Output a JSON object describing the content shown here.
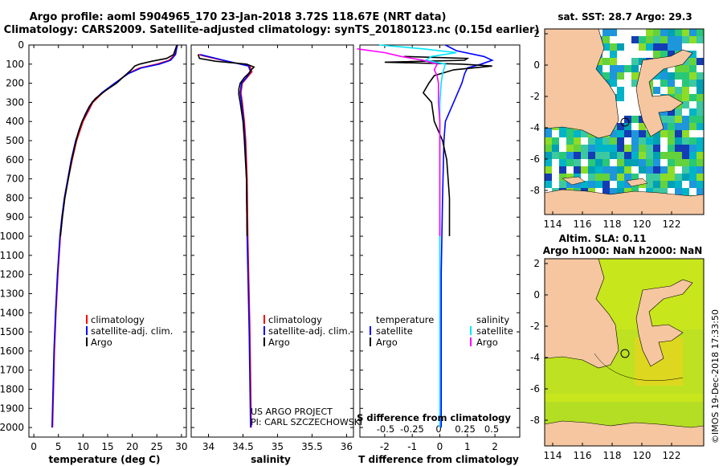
{
  "title_line1": "Argo profile: aoml 5904965_170 23-Jan-2018 3.72S 118.67E (NRT data)",
  "title_line2": "Climatology: CARS2009. Satellite-adjusted climatology: synTS_20180123.nc (0.15d earlier)",
  "depth_ticks": [
    0,
    100,
    200,
    300,
    400,
    500,
    600,
    700,
    800,
    900,
    1000,
    1100,
    1200,
    1300,
    1400,
    1500,
    1600,
    1700,
    1800,
    1900,
    2000
  ],
  "colors": {
    "climatology": "#ff0000",
    "satellite": "#0000ff",
    "argo": "#000000",
    "cyan": "#00e5ff",
    "magenta": "#ff00ff",
    "land": "#f5c6a0"
  },
  "chart_data": [
    {
      "type": "line",
      "id": "temperature",
      "xlabel": "temperature (deg C)",
      "xlim": [
        -1,
        31
      ],
      "ylim": [
        2050,
        0
      ],
      "xticks": [
        0,
        5,
        10,
        15,
        20,
        25,
        30
      ],
      "legend": [
        "climatology",
        "satellite-adj. clim.",
        "Argo"
      ],
      "series": [
        {
          "name": "climatology",
          "color": "#ff0000",
          "depth": [
            0,
            20,
            50,
            80,
            100,
            120,
            150,
            200,
            250,
            300,
            400,
            500,
            600,
            700,
            800,
            900,
            1000,
            1200,
            1400,
            1600,
            1800,
            2000
          ],
          "values": [
            29.0,
            28.9,
            28.7,
            27.5,
            25.0,
            21.5,
            19.0,
            16.5,
            14.0,
            12.0,
            10.0,
            8.7,
            7.8,
            7.0,
            6.3,
            5.8,
            5.4,
            4.9,
            4.5,
            4.2,
            4.0,
            3.8
          ]
        },
        {
          "name": "satellite-adj. clim.",
          "color": "#0000ff",
          "depth": [
            0,
            20,
            50,
            80,
            100,
            120,
            150,
            200,
            250,
            300,
            400,
            500,
            600,
            700,
            800,
            900,
            1000,
            1200,
            1400,
            1600,
            1800,
            2000
          ],
          "values": [
            29.2,
            29.0,
            28.8,
            27.8,
            25.5,
            21.8,
            19.2,
            16.4,
            13.8,
            11.8,
            9.8,
            8.5,
            7.6,
            6.9,
            6.2,
            5.7,
            5.3,
            4.8,
            4.4,
            4.1,
            3.9,
            3.7
          ]
        },
        {
          "name": "Argo",
          "color": "#000000",
          "depth": [
            0,
            20,
            50,
            70,
            85,
            100,
            110,
            130,
            160,
            200,
            240,
            280,
            320,
            360,
            400,
            450,
            500,
            600,
            700,
            800,
            900,
            1000
          ],
          "values": [
            29.1,
            28.8,
            28.4,
            27.0,
            24.0,
            21.5,
            20.5,
            19.8,
            18.5,
            16.8,
            14.5,
            12.5,
            11.3,
            10.5,
            9.8,
            9.1,
            8.6,
            7.7,
            7.0,
            6.3,
            5.8,
            5.4
          ]
        }
      ]
    },
    {
      "type": "line",
      "id": "salinity",
      "xlabel": "salinity",
      "xlim": [
        33.75,
        36.1
      ],
      "ylim": [
        2050,
        0
      ],
      "xticks": [
        34,
        34.5,
        35,
        35.5,
        36
      ],
      "legend": [
        "climatology",
        "satellite-adj. clim.",
        "Argo"
      ],
      "annotation": [
        "US ARGO PROJECT",
        "PI: CARL SZCZECHOWSKI"
      ],
      "series": [
        {
          "name": "climatology",
          "color": "#ff0000",
          "depth": [
            50,
            80,
            110,
            140,
            170,
            200,
            250,
            300,
            400,
            500,
            700,
            1000,
            1500,
            2000
          ],
          "values": [
            33.85,
            34.2,
            34.6,
            34.63,
            34.56,
            34.49,
            34.47,
            34.49,
            34.52,
            34.54,
            34.56,
            34.57,
            34.6,
            34.62
          ]
        },
        {
          "name": "satellite-adj. clim.",
          "color": "#0000ff",
          "depth": [
            50,
            80,
            110,
            140,
            170,
            200,
            250,
            300,
            400,
            500,
            700,
            1000,
            1500,
            2000
          ],
          "values": [
            33.88,
            34.22,
            34.58,
            34.61,
            34.55,
            34.48,
            34.46,
            34.48,
            34.51,
            34.53,
            34.55,
            34.56,
            34.59,
            34.61
          ]
        },
        {
          "name": "Argo",
          "color": "#000000",
          "depth": [
            50,
            70,
            85,
            100,
            115,
            130,
            150,
            170,
            200,
            230,
            260,
            300,
            400,
            500,
            700,
            1000
          ],
          "values": [
            33.85,
            33.87,
            34.1,
            34.55,
            34.66,
            34.62,
            34.58,
            34.52,
            34.46,
            34.44,
            34.44,
            34.46,
            34.5,
            34.52,
            34.55,
            34.56
          ]
        }
      ]
    },
    {
      "type": "line",
      "id": "difference",
      "xlabel": "T difference from climatology",
      "xlabel_top": "S difference from climatology",
      "xlim": [
        -2.9,
        2.9
      ],
      "ylim": [
        2050,
        0
      ],
      "xticks": [
        -2,
        -1,
        0,
        1,
        2
      ],
      "top_ticks": [
        "-0.5",
        "-0.25",
        "0",
        "0.25",
        "0.5"
      ],
      "legend_temperature_title": "temperature",
      "legend_salinity_title": "salinity",
      "legend_temperature": [
        "satellite",
        "Argo"
      ],
      "legend_salinity": [
        "satellite",
        "Argo"
      ],
      "series": [
        {
          "name": "T satellite",
          "color": "#0000ff",
          "depth": [
            0,
            30,
            60,
            80,
            100,
            120,
            150,
            200,
            300,
            400,
            500,
            800,
            1200,
            1600,
            2000
          ],
          "values": [
            0.2,
            0.6,
            1.6,
            1.9,
            1.5,
            1.0,
            0.9,
            0.8,
            0.5,
            0.2,
            0.15,
            0.1,
            0.05,
            0.05,
            0.05
          ]
        },
        {
          "name": "T Argo",
          "color": "#000000",
          "depth": [
            60,
            70,
            80,
            90,
            100,
            110,
            130,
            160,
            200,
            250,
            300,
            400,
            500,
            600,
            700,
            800,
            900,
            1000
          ],
          "values": [
            -1.3,
            1.0,
            0.9,
            -2.0,
            0.8,
            1.9,
            0.5,
            -0.2,
            -0.4,
            -0.6,
            -0.3,
            -0.2,
            0.1,
            0.25,
            0.3,
            0.35,
            0.35,
            0.35
          ]
        },
        {
          "name": "S satellite",
          "color": "#00e5ff",
          "depth": [
            0,
            20,
            40,
            60,
            80,
            100,
            150,
            200,
            300,
            500,
            800,
            1200,
            1600,
            2000
          ],
          "values": [
            -2.2,
            -0.6,
            0.6,
            -0.3,
            -0.5,
            0.2,
            0.1,
            0.05,
            0.0,
            0.0,
            0.0,
            0.0,
            0.0,
            0.0
          ]
        },
        {
          "name": "S Argo",
          "color": "#ff00ff",
          "depth": [
            20,
            40,
            60,
            80,
            100,
            130,
            160,
            200,
            300,
            400,
            600,
            800,
            1000
          ],
          "values": [
            -3.0,
            -2.0,
            -1.4,
            -0.6,
            -0.1,
            -0.2,
            -0.1,
            -0.05,
            -0.05,
            0.0,
            0.0,
            0.0,
            0.0
          ]
        }
      ]
    }
  ],
  "map1": {
    "title": "sat. SST: 28.7 Argo: 29.3",
    "xticks": [
      "114",
      "116",
      "118",
      "120",
      "122"
    ],
    "yticks": [
      "2",
      "0",
      "-2",
      "-4",
      "-6",
      "-8"
    ]
  },
  "map2": {
    "title_line1": "Altim. SLA: 0.11",
    "title_line2": "Argo h1000: NaN h2000: NaN",
    "xticks": [
      "114",
      "116",
      "118",
      "120",
      "122"
    ],
    "yticks": [
      "2",
      "0",
      "-2",
      "-4",
      "-6",
      "-8"
    ]
  },
  "credit": "©IMOS 19-Dec-2018 17:33:50"
}
